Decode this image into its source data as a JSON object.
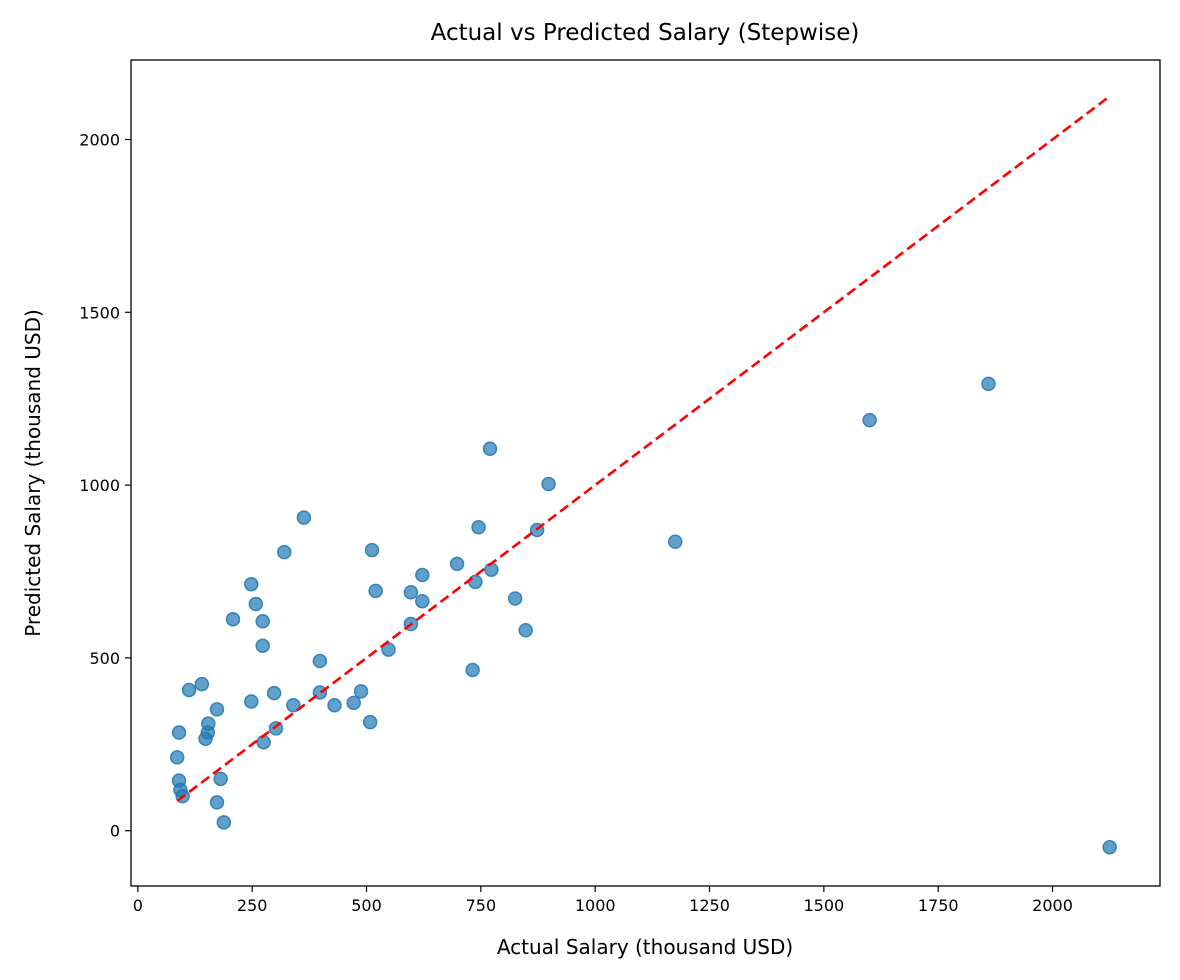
{
  "chart_data": {
    "type": "scatter",
    "title": "Actual vs Predicted Salary (Stepwise)",
    "xlabel": "Actual Salary (thousand USD)",
    "ylabel": "Predicted Salary (thousand USD)",
    "xlim": [
      -15,
      2235
    ],
    "ylim": [
      -160,
      2230
    ],
    "x_ticks": [
      0,
      250,
      500,
      750,
      1000,
      1250,
      1500,
      1750,
      2000
    ],
    "y_ticks": [
      0,
      500,
      1000,
      1500,
      2000
    ],
    "x_tick_labels": [
      "0",
      "250",
      "500",
      "750",
      "1000",
      "1250",
      "1500",
      "1750",
      "2000"
    ],
    "y_tick_labels": [
      "0",
      "500",
      "1000",
      "1500",
      "2000"
    ],
    "grid": false,
    "legend": "none",
    "point_color": "#1f77b4",
    "reference_line": {
      "from": [
        86,
        86
      ],
      "to": [
        2125,
        2125
      ],
      "style": "dashed",
      "color": "#ff0000"
    },
    "points": [
      {
        "x": 86,
        "y": 212
      },
      {
        "x": 90,
        "y": 284
      },
      {
        "x": 90,
        "y": 145
      },
      {
        "x": 93,
        "y": 118
      },
      {
        "x": 98,
        "y": 100
      },
      {
        "x": 112,
        "y": 407
      },
      {
        "x": 140,
        "y": 424
      },
      {
        "x": 148,
        "y": 266
      },
      {
        "x": 153,
        "y": 284
      },
      {
        "x": 154,
        "y": 310
      },
      {
        "x": 173,
        "y": 351
      },
      {
        "x": 173,
        "y": 82
      },
      {
        "x": 181,
        "y": 150
      },
      {
        "x": 188,
        "y": 24
      },
      {
        "x": 208,
        "y": 612
      },
      {
        "x": 248,
        "y": 713
      },
      {
        "x": 248,
        "y": 374
      },
      {
        "x": 258,
        "y": 656
      },
      {
        "x": 273,
        "y": 606
      },
      {
        "x": 273,
        "y": 535
      },
      {
        "x": 275,
        "y": 256
      },
      {
        "x": 298,
        "y": 398
      },
      {
        "x": 302,
        "y": 296
      },
      {
        "x": 320,
        "y": 806
      },
      {
        "x": 340,
        "y": 363
      },
      {
        "x": 363,
        "y": 906
      },
      {
        "x": 398,
        "y": 491
      },
      {
        "x": 398,
        "y": 400
      },
      {
        "x": 430,
        "y": 363
      },
      {
        "x": 472,
        "y": 370
      },
      {
        "x": 488,
        "y": 403
      },
      {
        "x": 508,
        "y": 314
      },
      {
        "x": 512,
        "y": 812
      },
      {
        "x": 520,
        "y": 694
      },
      {
        "x": 548,
        "y": 524
      },
      {
        "x": 597,
        "y": 690
      },
      {
        "x": 597,
        "y": 598
      },
      {
        "x": 622,
        "y": 740
      },
      {
        "x": 622,
        "y": 664
      },
      {
        "x": 698,
        "y": 772
      },
      {
        "x": 732,
        "y": 465
      },
      {
        "x": 738,
        "y": 720
      },
      {
        "x": 745,
        "y": 878
      },
      {
        "x": 770,
        "y": 1105
      },
      {
        "x": 773,
        "y": 755
      },
      {
        "x": 825,
        "y": 672
      },
      {
        "x": 848,
        "y": 580
      },
      {
        "x": 873,
        "y": 870
      },
      {
        "x": 898,
        "y": 1003
      },
      {
        "x": 1175,
        "y": 836
      },
      {
        "x": 1600,
        "y": 1188
      },
      {
        "x": 1860,
        "y": 1293
      },
      {
        "x": 2125,
        "y": -48
      }
    ]
  }
}
